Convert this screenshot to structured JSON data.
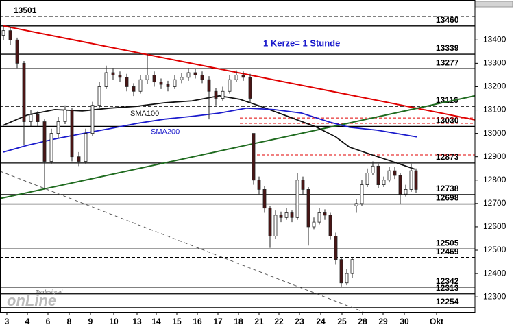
{
  "chart_data": {
    "type": "candlestick",
    "annotation": "1 Kerze= 1 Stunde",
    "logo": {
      "small": "Tradesignal",
      "big": "onLine"
    },
    "xlim": [
      0,
      69.3
    ],
    "ylim": [
      12236,
      13571
    ],
    "xticks": [
      {
        "value": 1,
        "label": "3"
      },
      {
        "value": 4,
        "label": "4"
      },
      {
        "value": 7,
        "label": "6"
      },
      {
        "value": 10.1,
        "label": "8"
      },
      {
        "value": 13.2,
        "label": "9"
      },
      {
        "value": 16.6,
        "label": "10"
      },
      {
        "value": 20,
        "label": "13"
      },
      {
        "value": 22.8,
        "label": "14"
      },
      {
        "value": 25.8,
        "label": "15"
      },
      {
        "value": 28.8,
        "label": "16"
      },
      {
        "value": 31.8,
        "label": "17"
      },
      {
        "value": 34.8,
        "label": "18"
      },
      {
        "value": 37.8,
        "label": "21"
      },
      {
        "value": 40.7,
        "label": "22"
      },
      {
        "value": 43.7,
        "label": "23"
      },
      {
        "value": 46.8,
        "label": "24"
      },
      {
        "value": 49.9,
        "label": "25"
      },
      {
        "value": 52.9,
        "label": "28"
      },
      {
        "value": 55.9,
        "label": "29"
      },
      {
        "value": 59,
        "label": "30"
      },
      {
        "value": 63.7,
        "label": "Okt"
      }
    ],
    "yticks": [
      13400,
      13300,
      13200,
      13100,
      13000,
      12900,
      12800,
      12700,
      12600,
      12500,
      12400,
      12300
    ],
    "up_color": "#ffffff",
    "down_color": "#4a1515",
    "candles": {
      "x": [
        0.5,
        1.5,
        2.5,
        3.5,
        4.5,
        5.5,
        6.5,
        7.5,
        8.5,
        9.5,
        10.5,
        11.5,
        12.5,
        13.5,
        14.5,
        15.5,
        16.5,
        17.5,
        18.5,
        19.5,
        20.5,
        21.5,
        22.5,
        23.5,
        24.5,
        25.5,
        26.5,
        27.5,
        28.5,
        29.5,
        30.5,
        31.5,
        32.5,
        33.5,
        34.5,
        35.5,
        36.5,
        37.0,
        37.8,
        38.6,
        39.4,
        40.2,
        41.0,
        41.8,
        42.6,
        43.4,
        44.2,
        45.0,
        45.8,
        46.6,
        47.4,
        48.2,
        49.0,
        49.8,
        50.6,
        51.4,
        52.0,
        52.8,
        53.6,
        54.4,
        55.2,
        56.0,
        56.8,
        57.6,
        58.4,
        59.2,
        60.0,
        60.7
      ],
      "open": [
        13420,
        13440,
        13400,
        13300,
        13050,
        13080,
        13050,
        12880,
        13000,
        13050,
        13100,
        12900,
        12880,
        13000,
        13120,
        13200,
        13260,
        13250,
        13240,
        13200,
        13180,
        13230,
        13250,
        13220,
        13210,
        13200,
        13230,
        13240,
        13260,
        13250,
        13230,
        13180,
        13150,
        13180,
        13230,
        13250,
        13240,
        13000,
        12800,
        12760,
        12680,
        12560,
        12650,
        12640,
        12660,
        12640,
        12800,
        12760,
        12600,
        12620,
        12660,
        12650,
        12560,
        12460,
        12360,
        12400,
        12690,
        12700,
        12780,
        12830,
        12860,
        12780,
        12800,
        12840,
        12820,
        12740,
        12760,
        12840
      ],
      "high": [
        13460,
        13455,
        13410,
        13310,
        13100,
        13095,
        13060,
        13020,
        13070,
        13120,
        13110,
        12920,
        13020,
        13135,
        13220,
        13290,
        13280,
        13265,
        13255,
        13215,
        13250,
        13339,
        13265,
        13235,
        13225,
        13250,
        13260,
        13280,
        13275,
        13265,
        13245,
        13195,
        13200,
        13250,
        13270,
        13265,
        13255,
        13000,
        12815,
        12775,
        12690,
        12670,
        12665,
        12680,
        12670,
        12830,
        12815,
        12770,
        12640,
        12680,
        12675,
        12660,
        12575,
        12470,
        12420,
        12470,
        12720,
        12800,
        12850,
        12880,
        12870,
        12815,
        12855,
        12855,
        12830,
        12780,
        12870,
        12850
      ],
      "low": [
        13400,
        13380,
        13280,
        12950,
        13030,
        13030,
        12760,
        12870,
        12980,
        13040,
        12880,
        12860,
        12870,
        12990,
        13110,
        13190,
        13230,
        13220,
        13180,
        13160,
        13170,
        13210,
        13200,
        13190,
        13180,
        13190,
        13215,
        13225,
        13235,
        13215,
        13060,
        13120,
        13140,
        13170,
        13220,
        13225,
        13130,
        12780,
        12740,
        12660,
        12510,
        12550,
        12620,
        12630,
        12620,
        12630,
        12740,
        12520,
        12590,
        12610,
        12630,
        12545,
        12440,
        12345,
        12350,
        12380,
        12660,
        12690,
        12770,
        12820,
        12765,
        12770,
        12790,
        12805,
        12700,
        12730,
        12750,
        12745
      ],
      "close": [
        13440,
        13400,
        13300,
        13050,
        13080,
        13050,
        12880,
        13000,
        13050,
        13100,
        12900,
        12880,
        13000,
        13120,
        13200,
        13260,
        13250,
        13240,
        13200,
        13180,
        13230,
        13250,
        13220,
        13210,
        13200,
        13230,
        13240,
        13260,
        13250,
        13230,
        13180,
        13150,
        13180,
        13230,
        13250,
        13240,
        13150,
        12800,
        12760,
        12680,
        12560,
        12650,
        12640,
        12660,
        12640,
        12800,
        12760,
        12600,
        12620,
        12660,
        12650,
        12560,
        12460,
        12360,
        12400,
        12460,
        12700,
        12780,
        12830,
        12860,
        12780,
        12800,
        12840,
        12820,
        12740,
        12760,
        12840,
        12760
      ]
    },
    "series": [
      {
        "name": "SMA100",
        "color": "#111111",
        "label_at": [
          19,
          13083
        ],
        "x": [
          0.5,
          4,
          8,
          12,
          16,
          20,
          24,
          28,
          32,
          35,
          38,
          42,
          46,
          49,
          51,
          54,
          57,
          60.5
        ],
        "values": [
          13035,
          13079,
          13102,
          13096,
          13108,
          13116,
          13131,
          13139,
          13161,
          13146,
          13116,
          13073,
          13029,
          12985,
          12941,
          12911,
          12882,
          12847
        ]
      },
      {
        "name": "SMA200",
        "color": "#1a1acc",
        "label_at": [
          22,
          13006
        ],
        "x": [
          0.5,
          4,
          8,
          12,
          16,
          20,
          24,
          28,
          32,
          36,
          40,
          44,
          48,
          51,
          55,
          60.8
        ],
        "values": [
          12920,
          12949,
          12976,
          12999,
          13020,
          13043,
          13061,
          13073,
          13087,
          13108,
          13102,
          13087,
          13049,
          13026,
          13014,
          12985
        ]
      }
    ],
    "trend_lines": [
      {
        "color": "#e00000",
        "width": 2,
        "dashed": false,
        "x": [
          0.5,
          69.3
        ],
        "y": [
          13460,
          13058
        ]
      },
      {
        "color": "#1f6b1f",
        "width": 2,
        "dashed": false,
        "x": [
          0,
          69.3
        ],
        "y": [
          12721,
          13161
        ]
      },
      {
        "color": "#555555",
        "width": 1,
        "dashed": true,
        "x": [
          0,
          53
        ],
        "y": [
          12838,
          12236
        ]
      }
    ],
    "levels": [
      {
        "value": 13501,
        "dashed": true,
        "label_position": "left"
      },
      {
        "value": 13460,
        "dashed": false
      },
      {
        "value": 13339,
        "dashed": false
      },
      {
        "value": 13277,
        "dashed": false
      },
      {
        "value": 13116,
        "dashed": true
      },
      {
        "value": 13030,
        "dashed": false
      },
      {
        "value": 12873,
        "dashed": false
      },
      {
        "value": 12738,
        "dashed": false
      },
      {
        "value": 12698,
        "dashed": false
      },
      {
        "value": 12505,
        "dashed": false
      },
      {
        "value": 12469,
        "dashed": true
      },
      {
        "value": 12342,
        "dashed": false
      },
      {
        "value": 12313,
        "dashed": false
      },
      {
        "value": 12254,
        "dashed": false
      }
    ],
    "dashed_levels": [
      {
        "value": 13066,
        "from": 35,
        "color": "#e00000"
      },
      {
        "value": 13043,
        "from": 35,
        "color": "#e00000"
      },
      {
        "value": 12908,
        "from": 37.5,
        "color": "#e00000"
      }
    ]
  }
}
